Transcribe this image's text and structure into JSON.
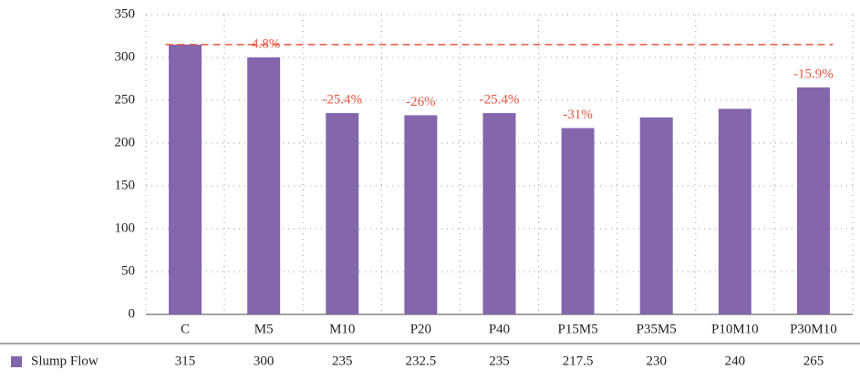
{
  "chart_data": {
    "type": "bar",
    "categories": [
      "C",
      "M5",
      "M10",
      "P20",
      "P40",
      "P15M5",
      "P35M5",
      "P10M10",
      "P30M10"
    ],
    "series": [
      {
        "name": "Slump Flow",
        "color": "#8466ad",
        "values": [
          315,
          300,
          235,
          232.5,
          235,
          217.5,
          230,
          240,
          265
        ]
      }
    ],
    "annotations": [
      null,
      "-4.8%",
      "-25.4%",
      "-26%",
      "-25.4%",
      "-31%",
      null,
      null,
      "-15.9%"
    ],
    "annotation_color": "#e8553f",
    "reference_line": {
      "value": 315,
      "color": "#e8553f",
      "style": "dashed"
    },
    "ylim": [
      0,
      350
    ],
    "yticks": [
      0,
      50,
      100,
      150,
      200,
      250,
      300,
      350
    ],
    "grid": true,
    "data_table": true
  }
}
